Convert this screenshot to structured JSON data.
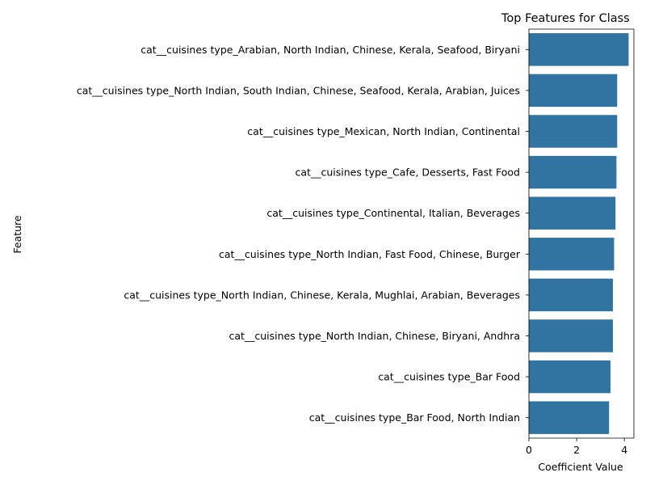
{
  "chart_data": {
    "type": "bar",
    "orientation": "horizontal",
    "title": "Top Features for Class",
    "xlabel": "Coefficient Value",
    "ylabel": "Feature",
    "categories": [
      "cat__cuisines type_Arabian, North Indian, Chinese, Kerala, Seafood, Biryani",
      "cat__cuisines type_North Indian, South Indian, Chinese, Seafood, Kerala, Arabian, Juices",
      "cat__cuisines type_Mexican, North Indian, Continental",
      "cat__cuisines type_Cafe, Desserts, Fast Food",
      "cat__cuisines type_Continental, Italian, Beverages",
      "cat__cuisines type_North Indian, Fast Food, Chinese, Burger",
      "cat__cuisines type_North Indian, Chinese, Kerala, Mughlai, Arabian, Beverages",
      "cat__cuisines type_North Indian, Chinese, Biryani, Andhra",
      "cat__cuisines type_Bar Food",
      "cat__cuisines type_Bar Food, North Indian"
    ],
    "values": [
      4.18,
      3.7,
      3.7,
      3.67,
      3.63,
      3.57,
      3.52,
      3.52,
      3.42,
      3.36
    ],
    "xlim": [
      0,
      4.4
    ],
    "xticks": [
      "0",
      "2",
      "4"
    ],
    "xtick_values": [
      0,
      2,
      4
    ],
    "bar_color": "#3274a1",
    "grid": false,
    "legend": "none"
  }
}
